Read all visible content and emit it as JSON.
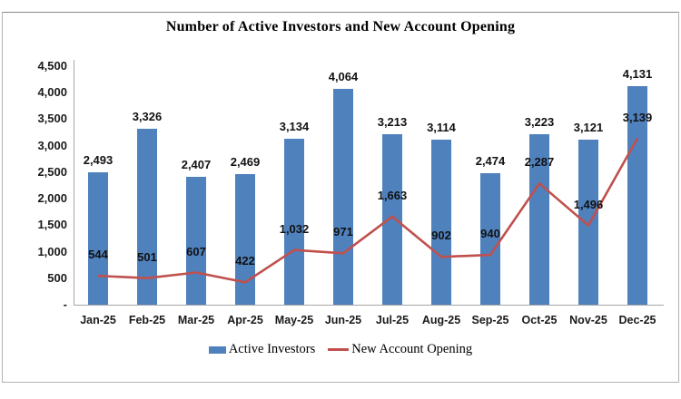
{
  "chart_data": {
    "type": "combo",
    "title": "Number of Active Investors and New Account Opening",
    "categories": [
      "Jan-25",
      "Feb-25",
      "Mar-25",
      "Apr-25",
      "May-25",
      "Jun-25",
      "Jul-25",
      "Aug-25",
      "Sep-25",
      "Oct-25",
      "Nov-25",
      "Dec-25"
    ],
    "series": [
      {
        "name": "Active Investors",
        "type": "bar",
        "color": "#4F81BD",
        "values": [
          2493,
          3326,
          2407,
          2469,
          3134,
          4064,
          3213,
          3114,
          2474,
          3223,
          3121,
          4131
        ],
        "labels": [
          "2,493",
          "3,326",
          "2,407",
          "2,469",
          "3,134",
          "4,064",
          "3,213",
          "3,114",
          "2,474",
          "3,223",
          "3,121",
          "4,131"
        ]
      },
      {
        "name": "New Account Opening",
        "type": "line",
        "color": "#C0504D",
        "values": [
          544,
          501,
          607,
          422,
          1032,
          971,
          1663,
          902,
          940,
          2287,
          1496,
          3139
        ],
        "labels": [
          "544",
          "501",
          "607",
          "422",
          "1,032",
          "971",
          "1,663",
          "902",
          "940",
          "2,287",
          "1,496",
          "3,139"
        ]
      }
    ],
    "ylim": [
      0,
      4500
    ],
    "yticks": [
      {
        "value": 4500,
        "label": "4,500"
      },
      {
        "value": 4000,
        "label": "4,000"
      },
      {
        "value": 3500,
        "label": "3,500"
      },
      {
        "value": 3000,
        "label": "3,000"
      },
      {
        "value": 2500,
        "label": "2,500"
      },
      {
        "value": 2000,
        "label": "2,000"
      },
      {
        "value": 1500,
        "label": "1,500"
      },
      {
        "value": 1000,
        "label": "1,000"
      },
      {
        "value": 500,
        "label": "500"
      },
      {
        "value": 0,
        "label": "-"
      }
    ],
    "grid": false,
    "legend_position": "bottom",
    "axis_color": "#a6a6a6"
  }
}
